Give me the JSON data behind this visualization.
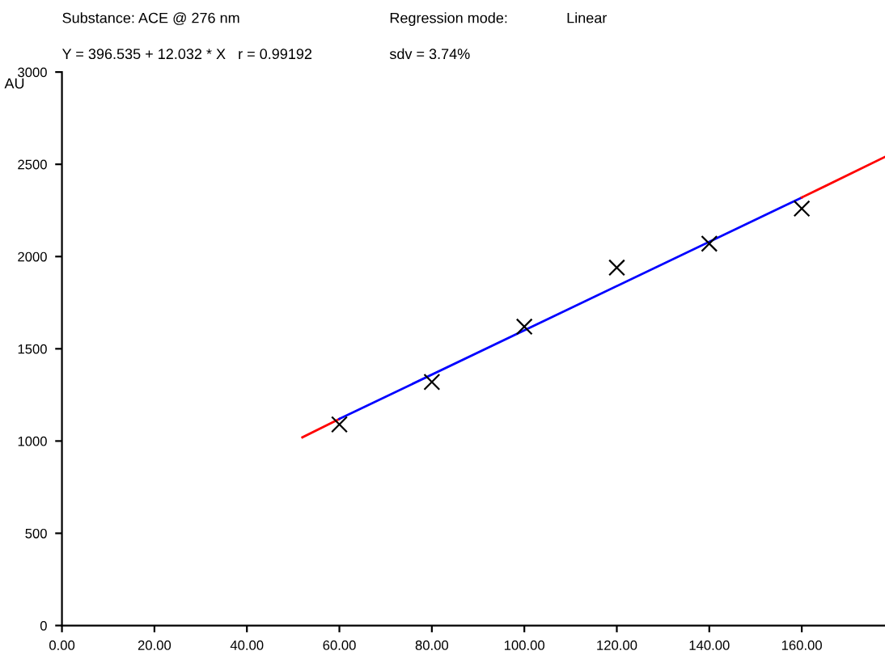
{
  "chart_data": {
    "type": "scatter",
    "title": "Substance: ACE @ 276 nm",
    "subtitle": "Y = 396.535 + 12.032 * X   r = 0.99192",
    "annotations": [
      "Regression mode:",
      "Linear",
      "sdv = 3.74%"
    ],
    "ylabel": "AU",
    "series": [
      {
        "type": "line",
        "color": "#ff0000",
        "x": [
          52,
          60
        ],
        "values": [
          1020,
          1120
        ]
      },
      {
        "type": "line",
        "color": "#0000ff",
        "x": [
          60,
          160
        ],
        "values": [
          1120,
          2320
        ]
      },
      {
        "type": "line",
        "color": "#ff0000",
        "x": [
          160,
          178
        ],
        "values": [
          2320,
          2540
        ]
      },
      {
        "color": "#000000",
        "marker": "cross",
        "x": [
          60,
          80,
          100,
          120,
          140,
          160
        ],
        "values": [
          1090,
          1320,
          1620,
          1940,
          2070,
          2260
        ]
      }
    ],
    "xlim": [
      0,
      178
    ],
    "ylim": [
      0,
      3000
    ],
    "xticks": [
      {
        "value": 0,
        "label": "0.00"
      },
      {
        "value": 20,
        "label": "20.00"
      },
      {
        "value": 40,
        "label": "40.00"
      },
      {
        "value": 60,
        "label": "60.00"
      },
      {
        "value": 80,
        "label": "80.00"
      },
      {
        "value": 100,
        "label": "100.00"
      },
      {
        "value": 120,
        "label": "120.00"
      },
      {
        "value": 140,
        "label": "140.00"
      },
      {
        "value": 160,
        "label": "160.00"
      }
    ],
    "yticks": [
      0,
      500,
      1000,
      1500,
      2000,
      2500,
      3000
    ],
    "grid": false,
    "legend": false
  }
}
